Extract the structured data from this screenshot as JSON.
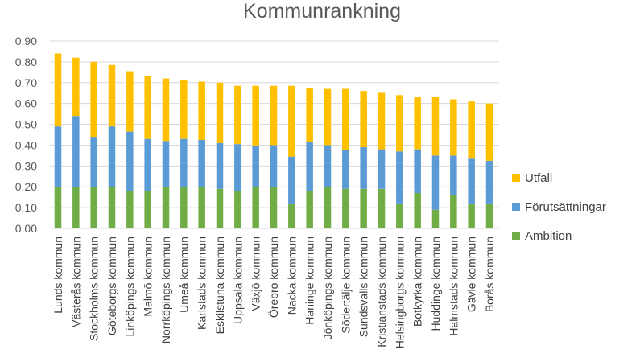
{
  "colors": {
    "Ambition": "#70ad47",
    "Förutsättningar": "#5b9bd5",
    "Utfall": "#ffc000",
    "grid": "#d9d9d9"
  },
  "chart_data": {
    "type": "bar",
    "stacked": true,
    "title": "Kommunrankning",
    "xlabel": "",
    "ylabel": "",
    "ylim": [
      0,
      0.9
    ],
    "yticks": [
      "0,00",
      "0,10",
      "0,20",
      "0,30",
      "0,40",
      "0,50",
      "0,60",
      "0,70",
      "0,80",
      "0,90"
    ],
    "grid": true,
    "legend_position": "right",
    "legend": [
      "Utfall",
      "Förutsättningar",
      "Ambition"
    ],
    "categories": [
      "Lunds kommun",
      "Västerås kommun",
      "Stockholms kommun",
      "Göteborgs kommun",
      "Linköpings kommun",
      "Malmö kommun",
      "Norrköpings kommun",
      "Umeå kommun",
      "Karlstads kommun",
      "Eskilstuna kommun",
      "Uppsala kommun",
      "Växjö kommun",
      "Örebro kommun",
      "Nacka kommun",
      "Haninge kommun",
      "Jönköpings kommun",
      "Södertälje kommun",
      "Sundsvalls kommun",
      "Kristianstads kommun",
      "Helsingborgs kommun",
      "Botkyrka kommun",
      "Huddinge kommun",
      "Halmstads kommun",
      "Gävle kommun",
      "Borås kommun"
    ],
    "series": [
      {
        "name": "Ambition",
        "values": [
          0.2,
          0.2,
          0.2,
          0.2,
          0.18,
          0.18,
          0.2,
          0.2,
          0.2,
          0.19,
          0.18,
          0.2,
          0.2,
          0.12,
          0.18,
          0.2,
          0.19,
          0.19,
          0.19,
          0.12,
          0.17,
          0.09,
          0.16,
          0.12,
          0.12
        ]
      },
      {
        "name": "Förutsättningar",
        "values": [
          0.29,
          0.34,
          0.24,
          0.29,
          0.285,
          0.25,
          0.22,
          0.23,
          0.225,
          0.22,
          0.225,
          0.195,
          0.2,
          0.225,
          0.235,
          0.2,
          0.185,
          0.2,
          0.19,
          0.25,
          0.21,
          0.26,
          0.19,
          0.215,
          0.205
        ]
      },
      {
        "name": "Utfall",
        "values": [
          0.35,
          0.28,
          0.36,
          0.295,
          0.29,
          0.3,
          0.3,
          0.285,
          0.28,
          0.29,
          0.28,
          0.29,
          0.285,
          0.34,
          0.26,
          0.27,
          0.295,
          0.27,
          0.275,
          0.27,
          0.25,
          0.28,
          0.27,
          0.275,
          0.275
        ]
      }
    ]
  }
}
